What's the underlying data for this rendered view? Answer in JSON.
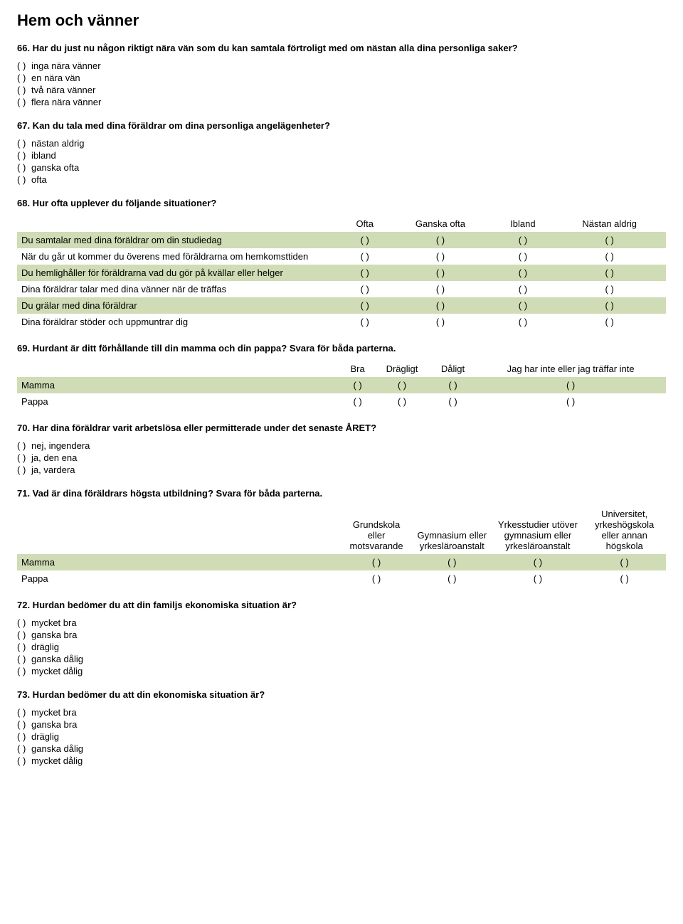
{
  "page_title": "Hem och vänner",
  "paren": "( )",
  "q66": {
    "text": "66. Har du just nu någon riktigt nära vän som du kan samtala förtroligt med om nästan alla dina personliga saker?",
    "options": [
      "inga nära vänner",
      "en nära vän",
      "två nära vänner",
      "flera nära vänner"
    ]
  },
  "q67": {
    "text": "67. Kan du tala med dina föräldrar om dina personliga angelägenheter?",
    "options": [
      "nästan aldrig",
      "ibland",
      "ganska ofta",
      "ofta"
    ]
  },
  "q68": {
    "text": "68. Hur ofta upplever du följande situationer?",
    "headers": [
      "Ofta",
      "Ganska ofta",
      "Ibland",
      "Nästan aldrig"
    ],
    "rows": [
      "Du samtalar med dina föräldrar om din studiedag",
      "När du går ut kommer du överens med föräldrarna om hemkomsttiden",
      "Du hemlighåller för föräldrarna vad du gör på kvällar eller helger",
      "Dina föräldrar talar med dina vänner när de träffas",
      "Du grälar med dina föräldrar",
      "Dina föräldrar stöder och uppmuntrar dig"
    ]
  },
  "q69": {
    "text": "69. Hurdant är ditt förhållande till din mamma och din pappa? Svara för båda parterna.",
    "headers": [
      "Bra",
      "Drägligt",
      "Dåligt",
      "Jag har inte eller jag träffar inte"
    ],
    "rows": [
      "Mamma",
      "Pappa"
    ]
  },
  "q70": {
    "text": "70. Har dina föräldrar varit arbetslösa eller permitterade under det senaste ÅRET?",
    "options": [
      "nej, ingendera",
      "ja, den ena",
      "ja, vardera"
    ]
  },
  "q71": {
    "text": "71. Vad är dina föräldrars högsta utbildning? Svara för båda parterna.",
    "headers": [
      "Grundskola eller motsvarande",
      "Gymnasium eller yrkesläroanstalt",
      "Yrkesstudier utöver gymnasium eller yrkesläroanstalt",
      "Universitet, yrkeshögskola eller annan högskola"
    ],
    "rows": [
      "Mamma",
      "Pappa"
    ]
  },
  "q72": {
    "text": "72. Hurdan bedömer du att din familjs ekonomiska situation är?",
    "options": [
      "mycket bra",
      "ganska bra",
      "dräglig",
      "ganska dålig",
      "mycket dålig"
    ]
  },
  "q73": {
    "text": "73. Hurdan bedömer du att din ekonomiska situation är?",
    "options": [
      "mycket bra",
      "ganska bra",
      "dräglig",
      "ganska dålig",
      "mycket dålig"
    ]
  },
  "colors": {
    "shaded_row": "#cfdcb5",
    "background": "#ffffff",
    "text": "#000000"
  }
}
